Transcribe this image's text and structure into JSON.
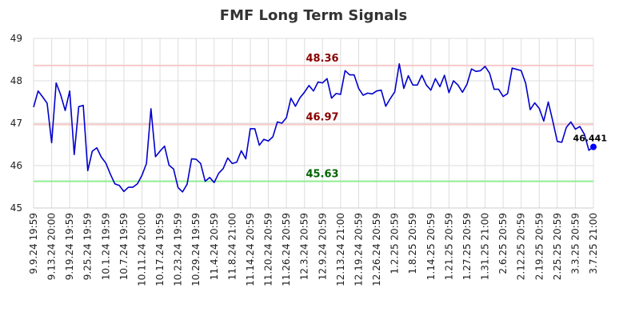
{
  "chart_data": {
    "type": "line",
    "title": "FMF Long Term Signals",
    "xlabel": "",
    "ylabel": "",
    "ylim": [
      45,
      49
    ],
    "y_ticks": [
      "45",
      "46",
      "47",
      "48",
      "49"
    ],
    "x_ticks": [
      "9.9.24 19:59",
      "9.13.24 20:00",
      "9.19.24 19:59",
      "9.25.24 19:59",
      "10.1.24 19:59",
      "10.7.24 19:59",
      "10.11.24 20:00",
      "10.17.24 19:59",
      "10.23.24 19:59",
      "10.29.24 19:59",
      "11.4.24 20:59",
      "11.8.24 21:00",
      "11.14.24 20:59",
      "11.20.24 20:59",
      "11.26.24 20:59",
      "12.3.24 20:59",
      "12.9.24 20:59",
      "12.13.24 21:00",
      "12.19.24 20:59",
      "12.26.24 20:59",
      "1.2.25 20:59",
      "1.8.25 20:59",
      "1.14.25 20:59",
      "1.21.25 20:59",
      "1.27.25 20:59",
      "1.31.25 21:00",
      "2.6.25 20:59",
      "2.12.25 20:59",
      "2.19.25 20:59",
      "2.25.25 20:59",
      "3.3.25 20:59",
      "3.7.25 21:00"
    ],
    "grid": true,
    "line_color": "#0000cc",
    "series": [
      {
        "values": [
          47.38,
          47.76,
          47.62,
          47.47,
          46.54,
          47.95,
          47.67,
          47.3,
          47.76,
          46.26,
          47.39,
          47.42,
          45.88,
          46.34,
          46.42,
          46.2,
          46.06,
          45.8,
          45.57,
          45.53,
          45.39,
          45.49,
          45.49,
          45.57,
          45.77,
          46.05,
          47.34,
          46.21,
          46.34,
          46.46,
          46.01,
          45.92,
          45.48,
          45.38,
          45.56,
          46.16,
          46.15,
          46.05,
          45.63,
          45.72,
          45.6,
          45.82,
          45.93,
          46.18,
          46.05,
          46.08,
          46.35,
          46.16,
          46.87,
          46.87,
          46.48,
          46.62,
          46.58,
          46.68,
          47.03,
          47.0,
          47.13,
          47.59,
          47.4,
          47.6,
          47.73,
          47.89,
          47.76,
          47.97,
          47.95,
          48.05,
          47.59,
          47.7,
          47.68,
          48.24,
          48.14,
          48.14,
          47.82,
          47.66,
          47.71,
          47.69,
          47.76,
          47.78,
          47.4,
          47.58,
          47.74,
          48.4,
          47.82,
          48.12,
          47.9,
          47.9,
          48.13,
          47.9,
          47.78,
          48.05,
          47.86,
          48.13,
          47.72,
          48.0,
          47.9,
          47.73,
          47.92,
          48.28,
          48.22,
          48.24,
          48.34,
          48.18,
          47.8,
          47.8,
          47.63,
          47.7,
          48.3,
          48.27,
          48.24,
          47.94,
          47.32,
          47.48,
          47.35,
          47.05,
          47.5,
          47.05,
          46.57,
          46.55,
          46.9,
          47.03,
          46.86,
          46.92,
          46.74,
          46.36,
          46.441
        ]
      }
    ],
    "levels": [
      {
        "value": 48.36,
        "label": "48.36",
        "line_color": "#f8c9c9",
        "label_color": "#8b0000"
      },
      {
        "value": 46.97,
        "label": "46.97",
        "line_color": "#f8c9c9",
        "label_color": "#8b0000"
      },
      {
        "value": 45.63,
        "label": "45.63",
        "line_color": "#90ee90",
        "label_color": "#006400"
      }
    ],
    "last_point": {
      "value": 46.441,
      "label": "46.441",
      "color": "#0000ff"
    }
  }
}
